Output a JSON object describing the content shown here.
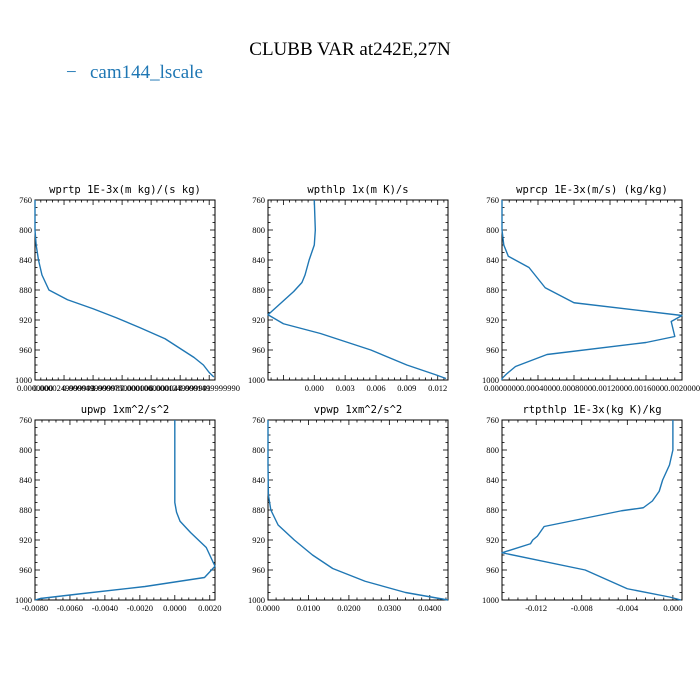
{
  "title": "CLUBB VAR at242E,27N",
  "legend": {
    "label": "cam144_lscale",
    "symbol": "−",
    "color": "#1f77b4"
  },
  "chart_data": [
    {
      "type": "line",
      "title": "wprtp  1E-3x(m kg)/(s kg)",
      "xlim": [
        0.0,
        0.000155
      ],
      "ylim": [
        760,
        1000
      ],
      "y_inverted": true,
      "xticks": [
        0.0,
        2.5e-05,
        5e-05,
        7.5e-05,
        0.0001,
        0.000125,
        0.00015
      ],
      "xticklabels": [
        "0.0000000",
        "0.0000249999993",
        "0.0000499999987",
        "0.0000750000006",
        "0.0001000000047",
        "0.0001249999991",
        "0.0001499999990"
      ],
      "yticks": [
        760,
        800,
        840,
        880,
        920,
        960,
        1000
      ],
      "series": [
        {
          "color": "#1f77b4",
          "x": [
            0.0,
            0.0,
            1e-06,
            3e-06,
            6e-06,
            1.2e-05,
            2.8e-05,
            5e-05,
            7e-05,
            9e-05,
            0.000112,
            0.000127,
            0.000137,
            0.000145,
            0.00015,
            0.000154
          ],
          "y": [
            760,
            800,
            820,
            840,
            860,
            880,
            893,
            905,
            917,
            930,
            945,
            960,
            970,
            980,
            990,
            996
          ]
        }
      ]
    },
    {
      "type": "line",
      "title": "wpthlp  1x(m K)/s",
      "xlim": [
        -0.0045,
        0.013
      ],
      "ylim": [
        760,
        1000
      ],
      "y_inverted": true,
      "xticks": [
        0.0,
        0.003,
        0.006,
        0.009,
        0.012
      ],
      "xticklabels": [
        "0.000",
        "0.003",
        "0.006",
        "0.009",
        "0.012"
      ],
      "yticks": [
        760,
        800,
        840,
        880,
        920,
        960,
        1000
      ],
      "series": [
        {
          "color": "#1f77b4",
          "x": [
            0.0,
            0.0001,
            0.0,
            -0.0005,
            -0.0009,
            -0.0012,
            -0.002,
            -0.0045,
            -0.003,
            0.0006,
            0.0055,
            0.009,
            0.0118,
            0.0128
          ],
          "y": [
            760,
            800,
            820,
            840,
            860,
            870,
            882,
            913,
            925,
            938,
            960,
            980,
            993,
            998
          ]
        }
      ]
    },
    {
      "type": "line",
      "title": "wprcp  1E-3x(m/s) (kg/kg)",
      "xlim": [
        0.0,
        0.002
      ],
      "ylim": [
        760,
        1000
      ],
      "y_inverted": true,
      "xticks": [
        0.0,
        0.0004,
        0.0008,
        0.0012,
        0.0016,
        0.002
      ],
      "xticklabels": [
        "0.0000000",
        "0.0004000",
        "0.0008000",
        "0.0012000",
        "0.0016000",
        "0.0020000"
      ],
      "yticks": [
        760,
        800,
        840,
        880,
        920,
        960,
        1000
      ],
      "series": [
        {
          "color": "#1f77b4",
          "x": [
            0.0,
            0.0,
            2e-05,
            7e-05,
            0.0003,
            0.00048,
            0.0008,
            0.002,
            0.00188,
            0.00192,
            0.0016,
            0.0005,
            0.00015,
            5e-05,
            0.0,
            0.0
          ],
          "y": [
            760,
            800,
            820,
            835,
            850,
            877,
            897,
            914,
            922,
            942,
            950,
            966,
            982,
            992,
            998,
            1000
          ]
        }
      ]
    },
    {
      "type": "line",
      "title": "upwp  1xm^2/s^2",
      "xlim": [
        -0.008,
        0.0023
      ],
      "ylim": [
        760,
        1000
      ],
      "y_inverted": true,
      "xticks": [
        -0.008,
        -0.006,
        -0.004,
        -0.002,
        0.0,
        0.002
      ],
      "xticklabels": [
        "-0.0080",
        "-0.0060",
        "-0.0040",
        "-0.0020",
        "0.0000",
        "0.0020"
      ],
      "yticks": [
        760,
        800,
        840,
        880,
        920,
        960,
        1000
      ],
      "series": [
        {
          "color": "#1f77b4",
          "x": [
            0.0,
            0.0,
            0.0,
            0.0,
            0.0001,
            0.0003,
            0.0009,
            0.0018,
            0.0023,
            0.0017,
            -0.0017,
            -0.0055,
            -0.0077,
            -0.008
          ],
          "y": [
            760,
            800,
            840,
            870,
            883,
            895,
            910,
            930,
            955,
            970,
            982,
            992,
            998,
            1000
          ]
        }
      ]
    },
    {
      "type": "line",
      "title": "vpwp  1xm^2/s^2",
      "xlim": [
        0.0,
        0.0445
      ],
      "ylim": [
        760,
        1000
      ],
      "y_inverted": true,
      "xticks": [
        0.0,
        0.01,
        0.02,
        0.03,
        0.04
      ],
      "xticklabels": [
        "0.0000",
        "0.0100",
        "0.0200",
        "0.0300",
        "0.0400"
      ],
      "yticks": [
        760,
        800,
        840,
        880,
        920,
        960,
        1000
      ],
      "series": [
        {
          "color": "#1f77b4",
          "x": [
            0.0,
            0.0,
            0.0001,
            0.0007,
            0.0025,
            0.0065,
            0.011,
            0.016,
            0.024,
            0.034,
            0.0445
          ],
          "y": [
            760,
            820,
            860,
            880,
            900,
            920,
            940,
            958,
            975,
            990,
            1000
          ]
        }
      ]
    },
    {
      "type": "line",
      "title": "rtpthlp  1E-3x(kg K)/kg",
      "xlim": [
        -0.015,
        0.0008
      ],
      "ylim": [
        760,
        1000
      ],
      "y_inverted": true,
      "xticks": [
        -0.012,
        -0.008,
        -0.004,
        0.0
      ],
      "xticklabels": [
        "-0.012",
        "-0.008",
        "-0.004",
        "0.000"
      ],
      "yticks": [
        760,
        800,
        840,
        880,
        920,
        960,
        1000
      ],
      "series": [
        {
          "color": "#1f77b4",
          "x": [
            0.0,
            0.0,
            -0.0003,
            -0.0009,
            -0.0012,
            -0.0018,
            -0.0026,
            -0.0045,
            -0.0113,
            -0.0119,
            -0.0123,
            -0.0125,
            -0.015,
            -0.0077,
            -0.004,
            -0.0003,
            0.0007
          ],
          "y": [
            760,
            800,
            820,
            840,
            855,
            868,
            877,
            881,
            902,
            915,
            920,
            925,
            937,
            960,
            985,
            996,
            1000
          ]
        }
      ]
    }
  ]
}
